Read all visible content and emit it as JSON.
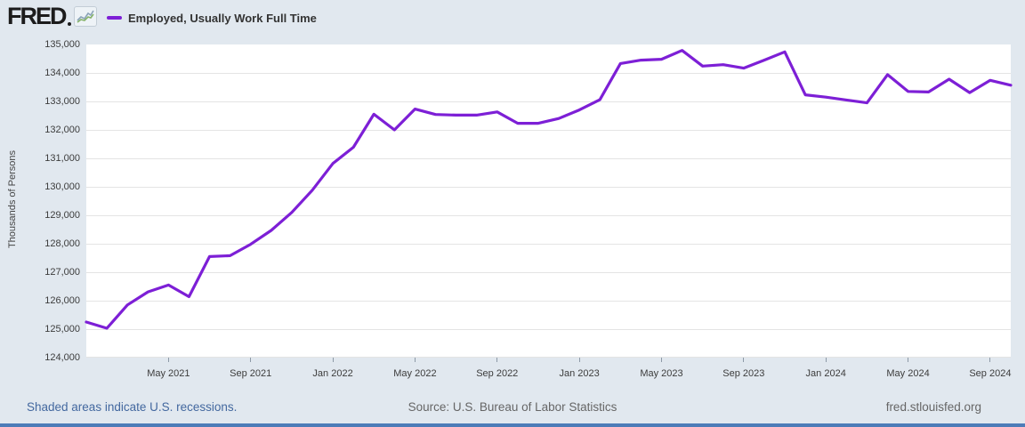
{
  "header": {
    "logo_text": "FRED",
    "legend": {
      "series_label": "Employed, Usually Work Full Time",
      "swatch_color": "#7d1fd6"
    }
  },
  "chart_data": {
    "type": "line",
    "title": "Employed, Usually Work Full Time",
    "ylabel": "Thousands of Persons",
    "ylim": [
      124000,
      135000
    ],
    "y_ticks": [
      124000,
      125000,
      126000,
      127000,
      128000,
      129000,
      130000,
      131000,
      132000,
      133000,
      134000,
      135000
    ],
    "x_tick_labels": [
      "May 2021",
      "Sep 2021",
      "Jan 2022",
      "May 2022",
      "Sep 2022",
      "Jan 2023",
      "May 2023",
      "Sep 2023",
      "Jan 2024",
      "May 2024",
      "Sep 2024"
    ],
    "x_tick_indices": [
      4,
      8,
      12,
      16,
      20,
      24,
      28,
      32,
      36,
      40,
      44
    ],
    "grid": "horizontal",
    "legend_position": "top-left",
    "series": [
      {
        "name": "Employed, Usually Work Full Time",
        "color": "#7d1fd6",
        "frequency": "monthly",
        "x_start": "Jan 2021",
        "x_end": "Oct 2024",
        "values": [
          125250,
          125030,
          125850,
          126310,
          126550,
          126140,
          127550,
          127580,
          127980,
          128470,
          129100,
          129880,
          130820,
          131390,
          132550,
          132000,
          132730,
          132540,
          132520,
          132520,
          132630,
          132230,
          132230,
          132400,
          132700,
          133060,
          134330,
          134450,
          134480,
          134790,
          134240,
          134290,
          134170,
          134450,
          134740,
          133230,
          133150,
          133050,
          132950,
          133940,
          133350,
          133330,
          133780,
          133310,
          133740,
          133570
        ]
      }
    ]
  },
  "footer": {
    "recession_note": "Shaded areas indicate U.S. recessions.",
    "source": "Source: U.S. Bureau of Labor Statistics",
    "site": "fred.stlouisfed.org"
  },
  "colors": {
    "line": "#7d1fd6",
    "page_background": "#e1e8ef",
    "plot_background": "#ffffff",
    "gridline": "#e4e4e4",
    "bottom_bar": "#4d7cb8",
    "link_blue": "#43689f"
  }
}
